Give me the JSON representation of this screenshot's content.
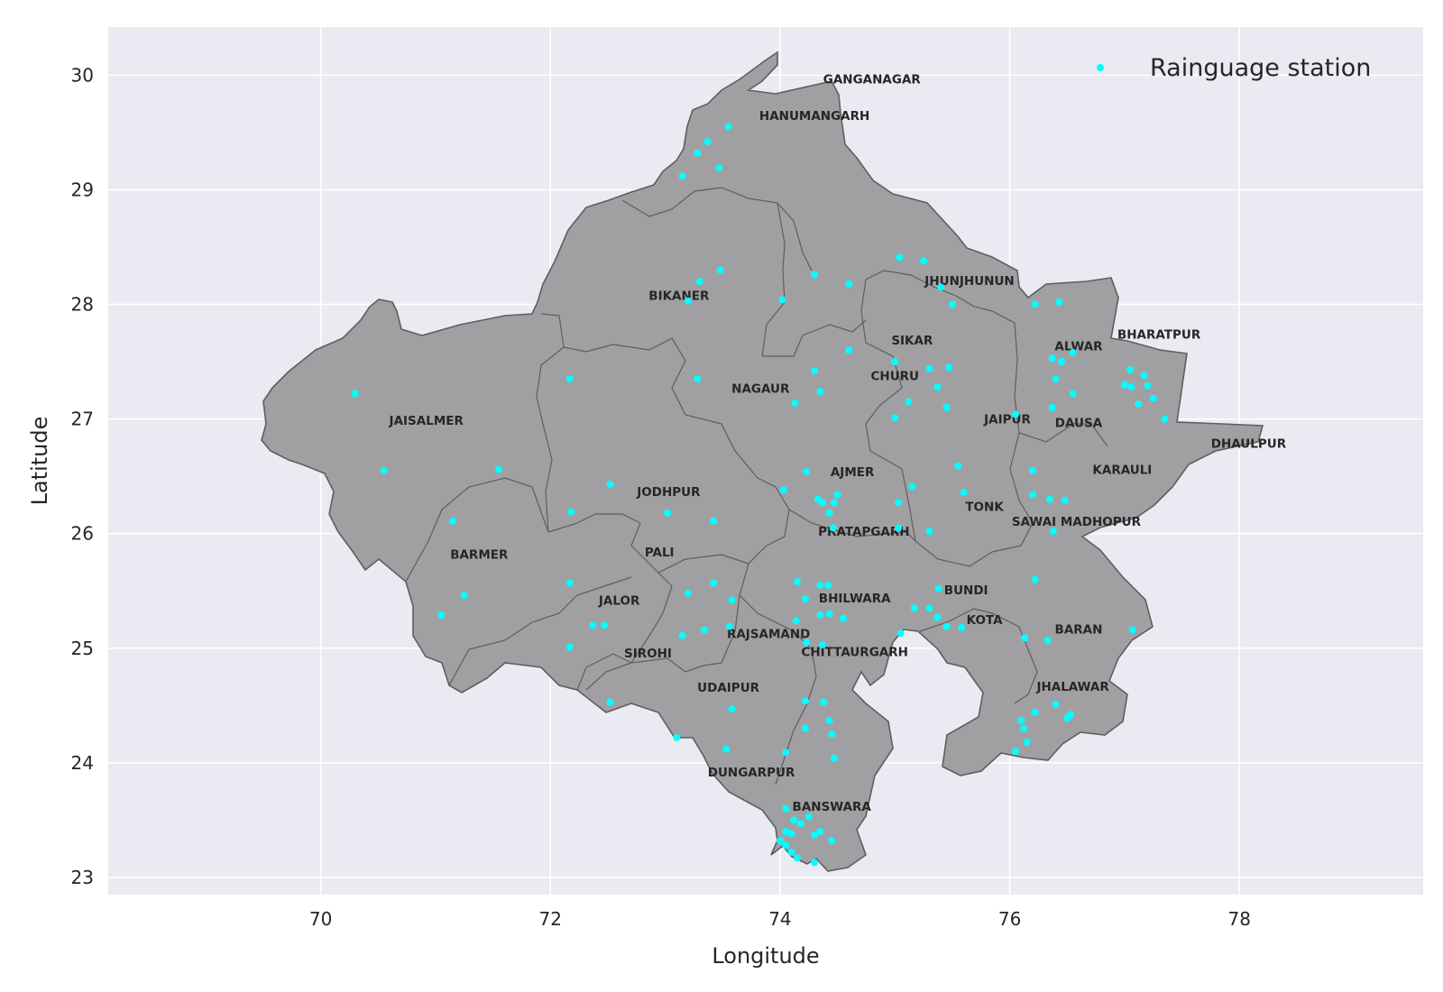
{
  "chart_data": {
    "type": "scatter",
    "xlabel": "Longitude",
    "ylabel": "Latitude",
    "xlim": [
      68.15,
      79.6
    ],
    "ylim": [
      22.85,
      30.42
    ],
    "xticks": [
      "70",
      "72",
      "74",
      "76",
      "78"
    ],
    "yticks": [
      "23",
      "24",
      "25",
      "26",
      "27",
      "28",
      "29",
      "30"
    ],
    "grid": true,
    "legend_position": "top-right",
    "series": [
      {
        "name": "Rainguage station",
        "color": "#00ffff",
        "points": [
          [
            73.55,
            29.55
          ],
          [
            73.37,
            29.42
          ],
          [
            73.28,
            29.32
          ],
          [
            73.47,
            29.19
          ],
          [
            73.15,
            29.12
          ],
          [
            75.25,
            28.38
          ],
          [
            75.04,
            28.41
          ],
          [
            74.3,
            28.26
          ],
          [
            74.6,
            28.18
          ],
          [
            75.4,
            28.15
          ],
          [
            75.5,
            28.0
          ],
          [
            73.48,
            28.3
          ],
          [
            73.3,
            28.2
          ],
          [
            73.2,
            28.03
          ],
          [
            74.02,
            28.04
          ],
          [
            72.17,
            27.35
          ],
          [
            73.28,
            27.35
          ],
          [
            74.3,
            27.42
          ],
          [
            74.35,
            27.24
          ],
          [
            74.13,
            27.14
          ],
          [
            74.6,
            27.6
          ],
          [
            75.0,
            27.5
          ],
          [
            75.3,
            27.44
          ],
          [
            75.47,
            27.45
          ],
          [
            75.37,
            27.28
          ],
          [
            75.12,
            27.15
          ],
          [
            75.45,
            27.1
          ],
          [
            75.0,
            27.01
          ],
          [
            76.05,
            27.04
          ],
          [
            76.22,
            28.0
          ],
          [
            76.43,
            28.02
          ],
          [
            76.37,
            27.53
          ],
          [
            76.45,
            27.5
          ],
          [
            76.55,
            27.58
          ],
          [
            76.4,
            27.35
          ],
          [
            76.55,
            27.22
          ],
          [
            76.37,
            27.1
          ],
          [
            77.05,
            27.43
          ],
          [
            77.0,
            27.3
          ],
          [
            77.06,
            27.28
          ],
          [
            77.17,
            27.38
          ],
          [
            77.2,
            27.29
          ],
          [
            77.25,
            27.18
          ],
          [
            77.12,
            27.13
          ],
          [
            77.35,
            27.0
          ],
          [
            70.3,
            27.22
          ],
          [
            70.55,
            26.55
          ],
          [
            71.55,
            26.56
          ],
          [
            71.15,
            26.11
          ],
          [
            72.52,
            26.43
          ],
          [
            72.18,
            26.19
          ],
          [
            73.02,
            26.18
          ],
          [
            73.42,
            26.11
          ],
          [
            74.03,
            26.38
          ],
          [
            74.23,
            26.54
          ],
          [
            74.33,
            26.3
          ],
          [
            74.37,
            26.27
          ],
          [
            74.47,
            26.27
          ],
          [
            74.5,
            26.34
          ],
          [
            74.43,
            26.18
          ],
          [
            74.46,
            26.05
          ],
          [
            75.03,
            26.27
          ],
          [
            75.15,
            26.41
          ],
          [
            75.03,
            26.05
          ],
          [
            75.3,
            26.02
          ],
          [
            75.55,
            26.59
          ],
          [
            75.6,
            26.36
          ],
          [
            76.2,
            26.55
          ],
          [
            76.2,
            26.34
          ],
          [
            76.35,
            26.3
          ],
          [
            76.48,
            26.29
          ],
          [
            76.38,
            26.02
          ],
          [
            73.2,
            25.48
          ],
          [
            73.42,
            25.57
          ],
          [
            73.58,
            25.42
          ],
          [
            73.56,
            25.19
          ],
          [
            73.34,
            25.16
          ],
          [
            73.15,
            25.11
          ],
          [
            72.17,
            25.57
          ],
          [
            72.37,
            25.2
          ],
          [
            72.47,
            25.2
          ],
          [
            72.17,
            25.01
          ],
          [
            71.25,
            25.46
          ],
          [
            71.05,
            25.29
          ],
          [
            74.15,
            25.58
          ],
          [
            74.22,
            25.43
          ],
          [
            74.35,
            25.55
          ],
          [
            74.42,
            25.55
          ],
          [
            74.14,
            25.24
          ],
          [
            74.35,
            25.29
          ],
          [
            74.43,
            25.3
          ],
          [
            74.55,
            25.26
          ],
          [
            74.23,
            25.05
          ],
          [
            74.37,
            25.03
          ],
          [
            75.17,
            25.35
          ],
          [
            75.3,
            25.35
          ],
          [
            75.37,
            25.27
          ],
          [
            75.45,
            25.19
          ],
          [
            75.58,
            25.18
          ],
          [
            75.38,
            25.52
          ],
          [
            75.05,
            25.13
          ],
          [
            76.22,
            25.6
          ],
          [
            76.13,
            25.09
          ],
          [
            76.33,
            25.07
          ],
          [
            77.07,
            25.16
          ],
          [
            72.52,
            24.53
          ],
          [
            73.58,
            24.47
          ],
          [
            73.1,
            24.22
          ],
          [
            73.53,
            24.12
          ],
          [
            74.05,
            24.09
          ],
          [
            74.22,
            24.54
          ],
          [
            74.38,
            24.53
          ],
          [
            74.43,
            24.37
          ],
          [
            74.22,
            24.3
          ],
          [
            74.45,
            24.25
          ],
          [
            74.47,
            24.04
          ],
          [
            76.22,
            24.44
          ],
          [
            76.1,
            24.37
          ],
          [
            76.12,
            24.3
          ],
          [
            76.15,
            24.18
          ],
          [
            76.05,
            24.1
          ],
          [
            76.4,
            24.51
          ],
          [
            76.5,
            24.39
          ],
          [
            76.53,
            24.42
          ],
          [
            74.05,
            23.6
          ],
          [
            74.12,
            23.5
          ],
          [
            74.18,
            23.47
          ],
          [
            74.25,
            23.53
          ],
          [
            74.05,
            23.4
          ],
          [
            74.1,
            23.38
          ],
          [
            74.0,
            23.32
          ],
          [
            74.05,
            23.28
          ],
          [
            74.1,
            23.22
          ],
          [
            74.15,
            23.17
          ],
          [
            74.3,
            23.37
          ],
          [
            74.35,
            23.4
          ],
          [
            74.45,
            23.32
          ],
          [
            74.3,
            23.13
          ]
        ]
      }
    ],
    "districts": [
      "GANGANAGAR",
      "HANUMANGARH",
      "CHURU",
      "JHUNJHUNUN",
      "BIKANER",
      "BHARATPUR",
      "SIKAR",
      "ALWAR",
      "NAGAUR",
      "JAISALMER",
      "JAIPUR",
      "DAUSA",
      "DHAULPUR",
      "AJMER",
      "KARAULI",
      "JODHPUR",
      "TONK",
      "SAWAI MADHOPUR",
      "PRATAPGARH",
      "BARMER",
      "PALI",
      "BUNDI",
      "BHILWARA",
      "JALOR",
      "KOTA",
      "BARAN",
      "RAJSAMAND",
      "SIROHI",
      "CHITTAURGARH",
      "JHALAWAR",
      "UDAIPUR",
      "DUNGARPUR",
      "BANSWARA"
    ],
    "district_label_points": [
      [
        74.8,
        29.93
      ],
      [
        74.3,
        29.61
      ],
      [
        75.0,
        27.34
      ],
      [
        75.65,
        28.17
      ],
      [
        73.12,
        28.04
      ],
      [
        77.3,
        27.7
      ],
      [
        75.15,
        27.65
      ],
      [
        76.6,
        27.6
      ],
      [
        73.83,
        27.23
      ],
      [
        70.92,
        26.95
      ],
      [
        75.98,
        26.96
      ],
      [
        76.6,
        26.93
      ],
      [
        78.08,
        26.75
      ],
      [
        74.63,
        26.5
      ],
      [
        76.98,
        26.52
      ],
      [
        73.03,
        26.33
      ],
      [
        75.78,
        26.2
      ],
      [
        76.58,
        26.07
      ],
      [
        74.73,
        25.98
      ],
      [
        71.38,
        25.78
      ],
      [
        72.95,
        25.8
      ],
      [
        75.62,
        25.47
      ],
      [
        74.65,
        25.4
      ],
      [
        72.6,
        25.38
      ],
      [
        75.78,
        25.21
      ],
      [
        76.6,
        25.13
      ],
      [
        73.9,
        25.09
      ],
      [
        72.85,
        24.92
      ],
      [
        74.65,
        24.93
      ],
      [
        76.55,
        24.63
      ],
      [
        73.55,
        24.62
      ],
      [
        73.75,
        23.88
      ],
      [
        74.45,
        23.58
      ]
    ],
    "legend": [
      "Rainguage station"
    ]
  }
}
